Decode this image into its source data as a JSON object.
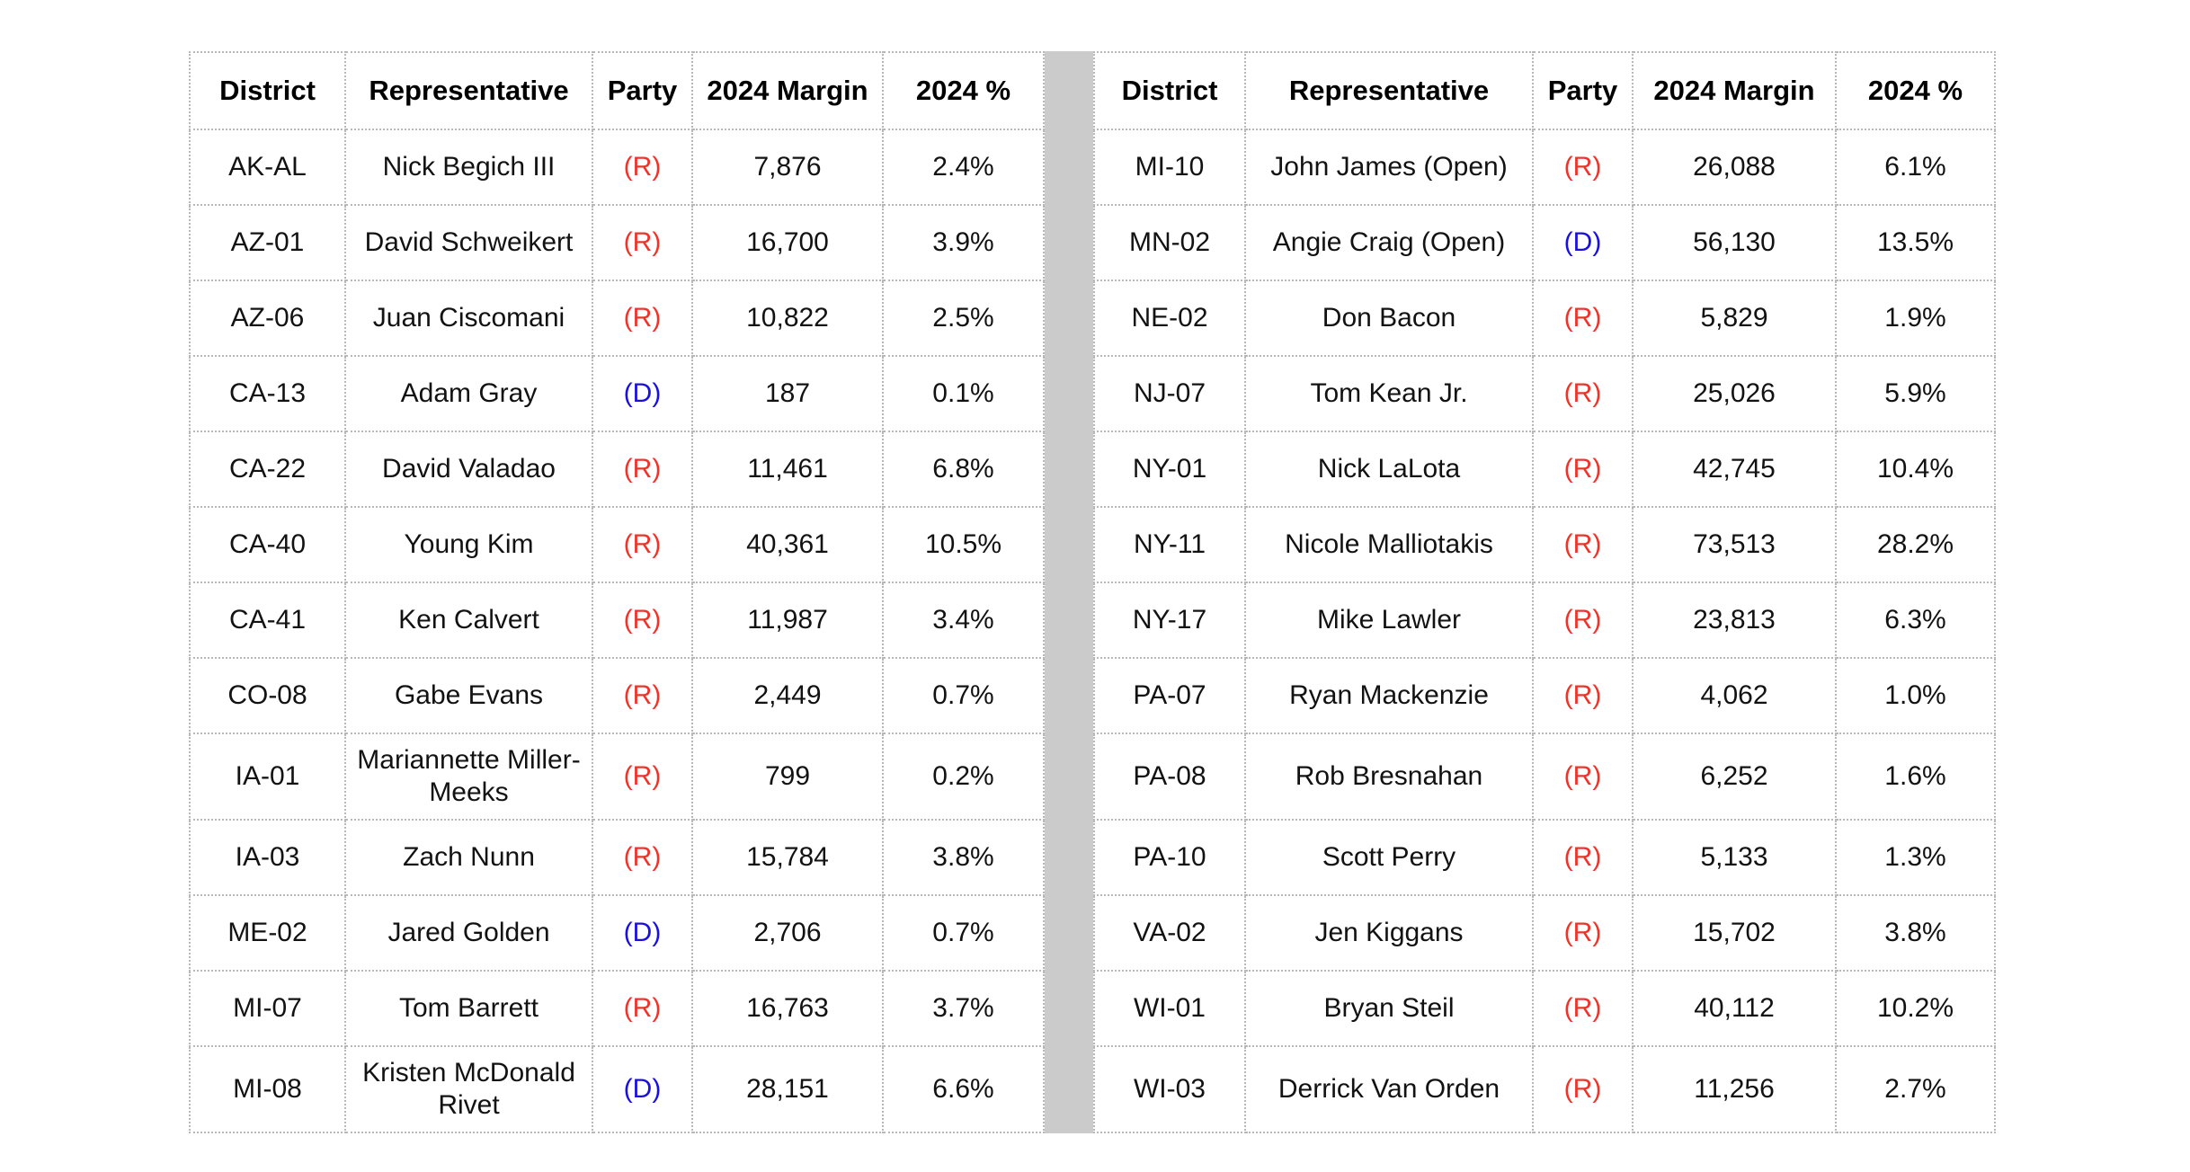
{
  "styles": {
    "party_colors": {
      "R": "#ed342a",
      "D": "#1a10dc"
    },
    "divider_color": "#cbcbcb",
    "border_color": "#b8b8b8",
    "text_color": "#121212"
  },
  "chart_data": [
    {
      "type": "table",
      "position": "left",
      "columns": [
        "District",
        "Representative",
        "Party",
        "2024 Margin",
        "2024 %"
      ],
      "rows": [
        {
          "district": "AK-AL",
          "representative": "Nick Begich III",
          "party": "R",
          "party_label": "(R)",
          "margin": "7,876",
          "pct": "2.4%"
        },
        {
          "district": "AZ-01",
          "representative": "David Schweikert",
          "party": "R",
          "party_label": "(R)",
          "margin": "16,700",
          "pct": "3.9%"
        },
        {
          "district": "AZ-06",
          "representative": "Juan Ciscomani",
          "party": "R",
          "party_label": "(R)",
          "margin": "10,822",
          "pct": "2.5%"
        },
        {
          "district": "CA-13",
          "representative": "Adam Gray",
          "party": "D",
          "party_label": "(D)",
          "margin": "187",
          "pct": "0.1%"
        },
        {
          "district": "CA-22",
          "representative": "David Valadao",
          "party": "R",
          "party_label": "(R)",
          "margin": "11,461",
          "pct": "6.8%"
        },
        {
          "district": "CA-40",
          "representative": "Young Kim",
          "party": "R",
          "party_label": "(R)",
          "margin": "40,361",
          "pct": "10.5%"
        },
        {
          "district": "CA-41",
          "representative": "Ken Calvert",
          "party": "R",
          "party_label": "(R)",
          "margin": "11,987",
          "pct": "3.4%"
        },
        {
          "district": "CO-08",
          "representative": "Gabe Evans",
          "party": "R",
          "party_label": "(R)",
          "margin": "2,449",
          "pct": "0.7%"
        },
        {
          "district": "IA-01",
          "representative": "Mariannette Miller-Meeks",
          "party": "R",
          "party_label": "(R)",
          "margin": "799",
          "pct": "0.2%"
        },
        {
          "district": "IA-03",
          "representative": "Zach Nunn",
          "party": "R",
          "party_label": "(R)",
          "margin": "15,784",
          "pct": "3.8%"
        },
        {
          "district": "ME-02",
          "representative": "Jared Golden",
          "party": "D",
          "party_label": "(D)",
          "margin": "2,706",
          "pct": "0.7%"
        },
        {
          "district": "MI-07",
          "representative": "Tom Barrett",
          "party": "R",
          "party_label": "(R)",
          "margin": "16,763",
          "pct": "3.7%"
        },
        {
          "district": "MI-08",
          "representative": "Kristen McDonald Rivet",
          "party": "D",
          "party_label": "(D)",
          "margin": "28,151",
          "pct": "6.6%"
        }
      ]
    },
    {
      "type": "table",
      "position": "right",
      "columns": [
        "District",
        "Representative",
        "Party",
        "2024 Margin",
        "2024 %"
      ],
      "rows": [
        {
          "district": "MI-10",
          "representative": "John James (Open)",
          "party": "R",
          "party_label": "(R)",
          "margin": "26,088",
          "pct": "6.1%"
        },
        {
          "district": "MN-02",
          "representative": "Angie Craig (Open)",
          "party": "D",
          "party_label": "(D)",
          "margin": "56,130",
          "pct": "13.5%"
        },
        {
          "district": "NE-02",
          "representative": "Don Bacon",
          "party": "R",
          "party_label": "(R)",
          "margin": "5,829",
          "pct": "1.9%"
        },
        {
          "district": "NJ-07",
          "representative": "Tom Kean Jr.",
          "party": "R",
          "party_label": "(R)",
          "margin": "25,026",
          "pct": "5.9%"
        },
        {
          "district": "NY-01",
          "representative": "Nick LaLota",
          "party": "R",
          "party_label": "(R)",
          "margin": "42,745",
          "pct": "10.4%"
        },
        {
          "district": "NY-11",
          "representative": "Nicole Malliotakis",
          "party": "R",
          "party_label": "(R)",
          "margin": "73,513",
          "pct": "28.2%"
        },
        {
          "district": "NY-17",
          "representative": "Mike Lawler",
          "party": "R",
          "party_label": "(R)",
          "margin": "23,813",
          "pct": "6.3%"
        },
        {
          "district": "PA-07",
          "representative": "Ryan Mackenzie",
          "party": "R",
          "party_label": "(R)",
          "margin": "4,062",
          "pct": "1.0%"
        },
        {
          "district": "PA-08",
          "representative": "Rob Bresnahan",
          "party": "R",
          "party_label": "(R)",
          "margin": "6,252",
          "pct": "1.6%"
        },
        {
          "district": "PA-10",
          "representative": "Scott Perry",
          "party": "R",
          "party_label": "(R)",
          "margin": "5,133",
          "pct": "1.3%"
        },
        {
          "district": "VA-02",
          "representative": "Jen Kiggans",
          "party": "R",
          "party_label": "(R)",
          "margin": "15,702",
          "pct": "3.8%"
        },
        {
          "district": "WI-01",
          "representative": "Bryan Steil",
          "party": "R",
          "party_label": "(R)",
          "margin": "40,112",
          "pct": "10.2%"
        },
        {
          "district": "WI-03",
          "representative": "Derrick Van Orden",
          "party": "R",
          "party_label": "(R)",
          "margin": "11,256",
          "pct": "2.7%"
        }
      ]
    }
  ]
}
